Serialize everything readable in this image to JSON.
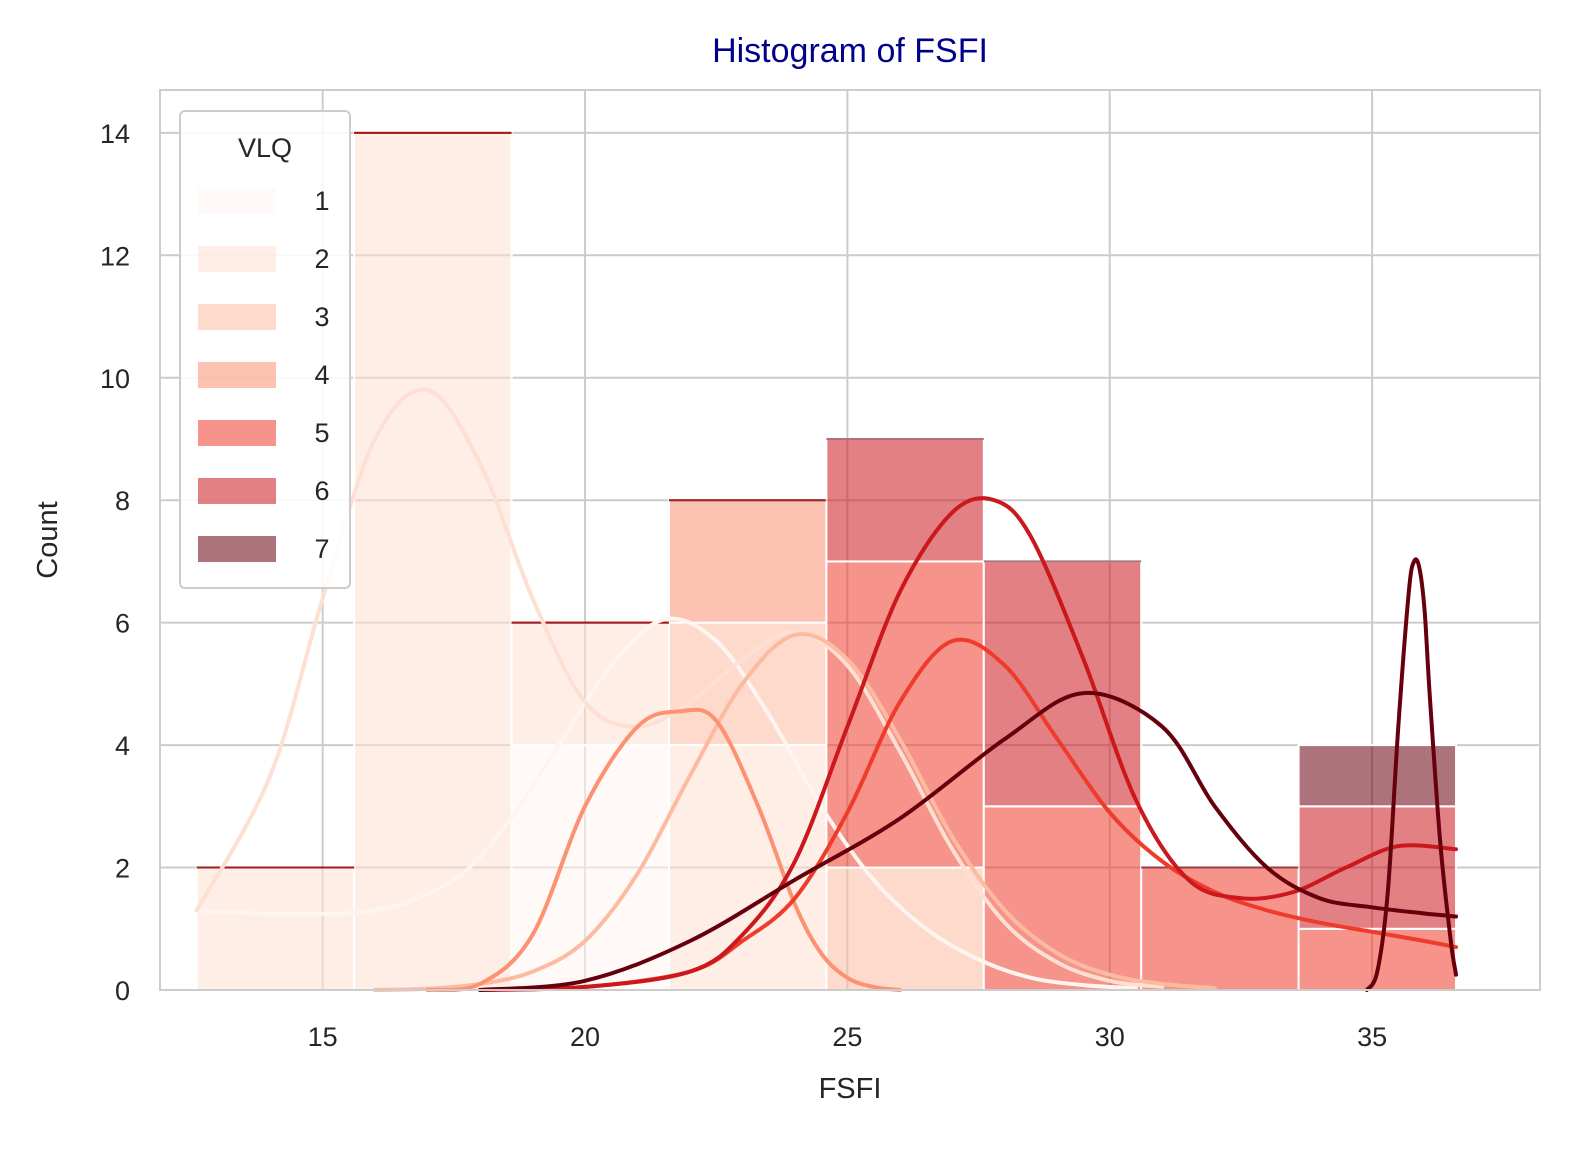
{
  "chart_data": {
    "type": "histogram",
    "title": "Histogram of FSFI",
    "xlabel": "FSFI",
    "ylabel": "Count",
    "xlim": [
      11.9,
      38.2
    ],
    "ylim": [
      0,
      14.7
    ],
    "xticks": [
      15,
      20,
      25,
      30,
      35
    ],
    "yticks": [
      0,
      2,
      4,
      6,
      8,
      10,
      12,
      14
    ],
    "grid": true,
    "stacked": true,
    "bin_edges": [
      12.6,
      15.6,
      18.6,
      21.6,
      24.6,
      27.6,
      30.6,
      33.6,
      36.6
    ],
    "legend": {
      "title": "VLQ",
      "position": "top-left"
    },
    "series": [
      {
        "name": "1",
        "color": "#fff5f0",
        "counts": [
          0,
          0,
          4,
          0,
          0,
          0,
          0,
          0
        ],
        "kde_x": [
          12.6,
          14,
          16,
          17.5,
          18.5,
          19.5,
          20.5,
          21.5,
          22.5,
          23.5,
          24.5,
          25.5,
          26.5,
          27.5,
          28.5,
          29.5,
          30.5
        ],
        "kde_y": [
          1.3,
          1.25,
          1.3,
          1.8,
          2.7,
          4.0,
          5.3,
          6.05,
          5.7,
          4.5,
          3.0,
          1.8,
          1.0,
          0.5,
          0.2,
          0.08,
          0.03
        ]
      },
      {
        "name": "2",
        "color": "#fee0d2",
        "counts": [
          2,
          14,
          2,
          4,
          0,
          0,
          0,
          0
        ],
        "kde_x": [
          12.6,
          14,
          15,
          16,
          17,
          18,
          19,
          20,
          21,
          22,
          23,
          24,
          25,
          26,
          27,
          28,
          29,
          30,
          31
        ],
        "kde_y": [
          1.3,
          3.5,
          6.4,
          9.0,
          9.8,
          8.6,
          6.4,
          4.7,
          4.3,
          4.7,
          5.4,
          5.85,
          5.3,
          3.9,
          2.3,
          1.1,
          0.45,
          0.15,
          0.05
        ]
      },
      {
        "name": "3",
        "color": "#fcbba1",
        "counts": [
          0,
          0,
          0,
          2,
          2,
          0,
          0,
          0
        ],
        "kde_x": [
          16,
          17,
          18,
          19,
          20,
          21,
          22,
          23,
          24,
          25,
          26,
          27,
          28,
          29,
          30,
          31,
          32
        ],
        "kde_y": [
          0.0,
          0.02,
          0.1,
          0.3,
          0.8,
          1.9,
          3.5,
          5.0,
          5.8,
          5.4,
          4.1,
          2.5,
          1.3,
          0.6,
          0.25,
          0.1,
          0.03
        ]
      },
      {
        "name": "4",
        "color": "#fc9272",
        "counts": [
          0,
          0,
          0,
          2,
          0,
          0,
          0,
          0
        ],
        "kde_x": [
          17,
          18,
          19,
          20,
          21,
          21.8,
          22.5,
          23.3,
          24,
          24.5,
          25,
          25.5,
          26
        ],
        "kde_y": [
          0.0,
          0.1,
          0.9,
          3.0,
          4.3,
          4.55,
          4.4,
          3.0,
          1.4,
          0.6,
          0.2,
          0.05,
          0.0
        ]
      },
      {
        "name": "5",
        "color": "#ef3b2c",
        "counts": [
          0,
          0,
          0,
          0,
          5,
          3,
          2,
          1
        ],
        "kde_x": [
          18,
          20,
          22,
          23,
          24,
          25,
          26,
          27,
          28,
          29,
          30,
          31,
          32,
          33,
          34,
          35,
          36,
          36.6
        ],
        "kde_y": [
          0.0,
          0.05,
          0.3,
          0.8,
          1.5,
          2.9,
          4.7,
          5.7,
          5.3,
          4.1,
          2.9,
          2.1,
          1.6,
          1.3,
          1.1,
          0.95,
          0.8,
          0.7
        ]
      },
      {
        "name": "6",
        "color": "#cb181d",
        "counts": [
          0,
          0,
          0,
          0,
          2,
          4,
          0,
          2
        ],
        "kde_x": [
          18,
          20,
          22,
          23,
          24,
          25,
          26,
          27,
          27.8,
          28.5,
          29.5,
          30.5,
          31.5,
          32.5,
          33.5,
          34.5,
          35.5,
          36.6
        ],
        "kde_y": [
          0.0,
          0.05,
          0.3,
          0.9,
          2.1,
          4.3,
          6.5,
          7.8,
          8.0,
          7.4,
          5.4,
          3.1,
          1.8,
          1.5,
          1.6,
          2.0,
          2.35,
          2.3
        ]
      },
      {
        "name": "7",
        "color": "#67000d",
        "counts": [
          0,
          0,
          0,
          0,
          0,
          0,
          0,
          1
        ],
        "kde_x": [
          18,
          20,
          22,
          24,
          26,
          28,
          29.5,
          31,
          32,
          33,
          34,
          35,
          36,
          36.6
        ],
        "kde_y": [
          0.0,
          0.15,
          0.8,
          1.8,
          2.8,
          4.1,
          4.85,
          4.3,
          3.0,
          2.0,
          1.5,
          1.35,
          1.25,
          1.2
        ]
      }
    ],
    "extra_kde": [
      {
        "color": "#67000d",
        "kde_x": [
          34.9,
          35.1,
          35.3,
          35.5,
          35.7,
          35.8,
          35.9,
          36.0,
          36.1,
          36.3,
          36.5,
          36.6
        ],
        "kde_y": [
          0.0,
          0.3,
          1.6,
          4.3,
          6.5,
          7.0,
          6.9,
          6.2,
          4.8,
          2.4,
          0.8,
          0.25
        ]
      }
    ]
  }
}
